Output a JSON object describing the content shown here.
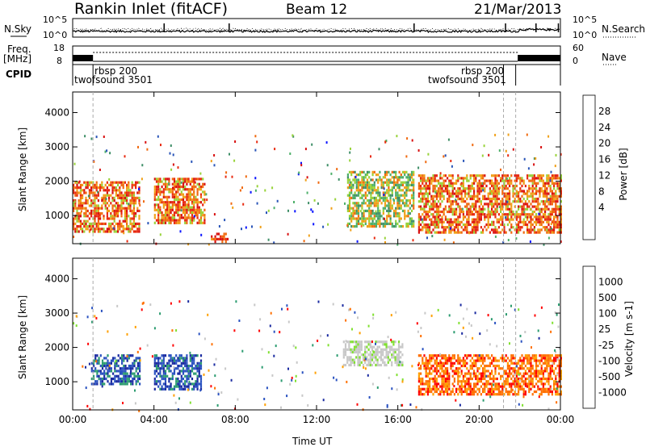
{
  "header": {
    "station": "Rankin Inlet (fitACF)",
    "beam": "Beam 12",
    "date": "21/Mar/2013"
  },
  "top_panels": {
    "nsky_label": "N.Sky",
    "nsky_ticks": [
      "10^5",
      "10^0"
    ],
    "nsearch_label": "N.Search",
    "nsearch_ticks": [
      "10^5",
      "10^0"
    ],
    "freq_label_1": "Freq.",
    "freq_label_2": "[MHz]",
    "freq_ticks": [
      "18",
      "8"
    ],
    "nave_label": "Nave",
    "nave_ticks": [
      "60",
      "0"
    ],
    "cpid_label": "CPID",
    "cpid_annotations": [
      "rbsp 200",
      "twofsound 3501",
      "rbsp 200",
      "twofsound 3501"
    ]
  },
  "colors": {
    "power_scale": [
      "#0a14ff",
      "#2a55b8",
      "#3f8f68",
      "#4eb06a",
      "#98d33a",
      "#f0a018",
      "#f06a10",
      "#e82a10",
      "#d81010"
    ],
    "velocity_scale": [
      "#ff0000",
      "#ff7000",
      "#ffa000",
      "#c8c8c8",
      "#c8c8c8",
      "#80e030",
      "#2c9c70",
      "#2a52c0",
      "#1a2aa0"
    ]
  },
  "chart_data": [
    {
      "type": "heatmap",
      "title": "Power",
      "ylabel": "Slant Range [km]",
      "ylim": [
        180,
        4600
      ],
      "yticks": [
        1000,
        2000,
        3000,
        4000
      ],
      "colorbar_label": "Power [dB]",
      "colorbar_ticks": [
        28,
        24,
        20,
        16,
        12,
        8,
        4
      ],
      "colorbar_range": [
        0,
        32
      ],
      "echo_regions": [
        {
          "t_start": 0.0,
          "t_end": 3.3,
          "range_km": [
            500,
            2000
          ],
          "value_db": 24
        },
        {
          "t_start": 4.0,
          "t_end": 6.5,
          "range_km": [
            800,
            2100
          ],
          "value_db": 24
        },
        {
          "t_start": 6.8,
          "t_end": 7.6,
          "range_km": [
            200,
            500
          ],
          "value_db": 28
        },
        {
          "t_start": 13.5,
          "t_end": 16.8,
          "range_km": [
            700,
            2300
          ],
          "value_db": 16
        },
        {
          "t_start": 17.0,
          "t_end": 24.0,
          "range_km": [
            500,
            2200
          ],
          "value_db": 22
        }
      ]
    },
    {
      "type": "heatmap",
      "title": "Velocity",
      "ylabel": "Slant Range [km]",
      "ylim": [
        180,
        4600
      ],
      "yticks": [
        1000,
        2000,
        3000,
        4000
      ],
      "colorbar_label": "Velocity [m s-1]",
      "colorbar_ticks": [
        1000,
        500,
        100,
        25,
        -25,
        -100,
        -500,
        -1000
      ],
      "echo_regions": [
        {
          "t_start": 0.9,
          "t_end": 3.3,
          "range_km": [
            900,
            1800
          ],
          "value_ms": 800
        },
        {
          "t_start": 4.0,
          "t_end": 6.3,
          "range_km": [
            800,
            1800
          ],
          "value_ms": 800
        },
        {
          "t_start": 13.3,
          "t_end": 16.2,
          "range_km": [
            1500,
            2200
          ],
          "value_ms": 0
        },
        {
          "t_start": 17.0,
          "t_end": 24.0,
          "range_km": [
            600,
            1800
          ],
          "value_ms": -200
        }
      ]
    }
  ],
  "time_axis": {
    "xlabel": "Time UT",
    "xlim_hours": [
      0,
      24
    ],
    "tick_hours": [
      0,
      4,
      8,
      12,
      16,
      20,
      24
    ],
    "tick_labels": [
      "00:00",
      "04:00",
      "08:00",
      "12:00",
      "16:00",
      "20:00",
      "00:00"
    ],
    "mode_change_markers_hours": [
      1.0,
      21.2,
      21.8
    ]
  }
}
